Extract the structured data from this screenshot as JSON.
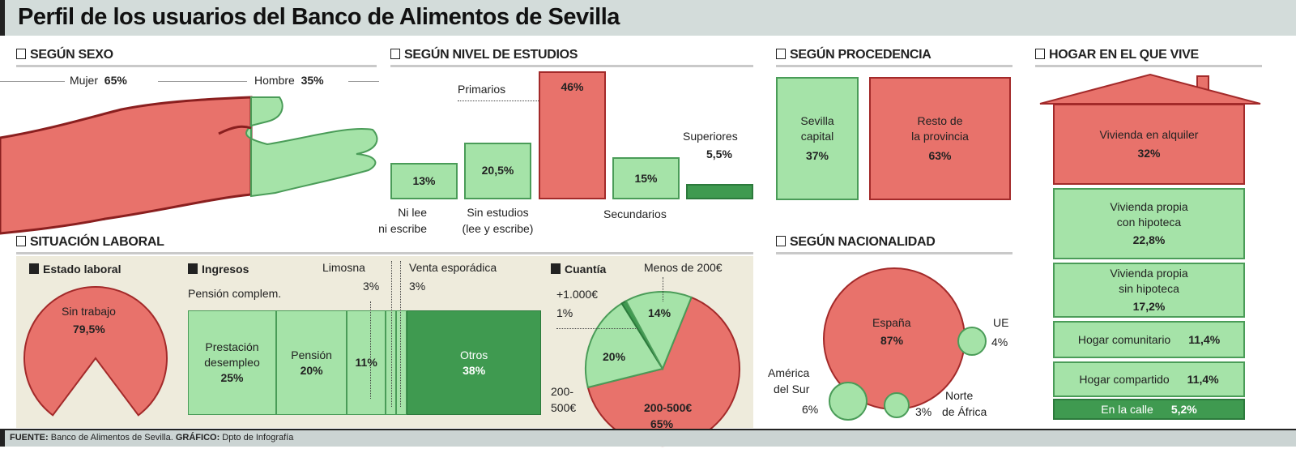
{
  "title": "Perfil de los usuarios del Banco de Alimentos de Sevilla",
  "colors": {
    "red": "#e8726b",
    "light_green": "#a5e3a8",
    "dark_green": "#3f9a50",
    "panel": "#eeebdc"
  },
  "sections": {
    "sexo": "SEGÚN SEXO",
    "estudios": "SEGÚN NIVEL DE ESTUDIOS",
    "procedencia": "SEGÚN PROCEDENCIA",
    "hogar": "HOGAR EN EL QUE VIVE",
    "laboral": "SITUACIÓN LABORAL",
    "nacionalidad": "SEGÚN NACIONALIDAD"
  },
  "sexo": {
    "mujer": {
      "label": "Mujer",
      "value": "65%"
    },
    "hombre": {
      "label": "Hombre",
      "value": "35%"
    }
  },
  "laboral_sub": {
    "estado": "Estado laboral",
    "ingresos": "Ingresos",
    "cuantia": "Cuantía"
  },
  "footer": {
    "fuente_label": "FUENTE:",
    "fuente": "Banco de Alimentos de Sevilla.",
    "grafico_label": "GRÁFICO:",
    "grafico": "Dpto de Infografía"
  },
  "chart_data": [
    {
      "type": "bar",
      "id": "estudios",
      "categories": [
        "Ni lee ni escribe",
        "Sin estudios (lee y escribe)",
        "Primarios",
        "Secundarios",
        "Superiores"
      ],
      "values": [
        13,
        20.5,
        46,
        15,
        5.5
      ],
      "labels": [
        "13%",
        "20,5%",
        "46%",
        "15%",
        "5,5%"
      ],
      "cat_lines": [
        [
          "Ni lee",
          "ni escribe"
        ],
        [
          "Sin estudios",
          "(lee y escribe)"
        ],
        [
          "Primarios"
        ],
        [
          "Secundarios"
        ],
        [
          "Superiores"
        ]
      ]
    },
    {
      "type": "bar",
      "id": "procedencia",
      "categories": [
        "Sevilla capital",
        "Resto de la provincia"
      ],
      "values": [
        37,
        63
      ],
      "labels": [
        "37%",
        "63%"
      ],
      "cat_lines": [
        [
          "Sevilla",
          "capital"
        ],
        [
          "Resto de",
          "la provincia"
        ]
      ]
    },
    {
      "type": "bar",
      "id": "hogar",
      "categories": [
        "Vivienda en alquiler",
        "Vivienda propia con hipoteca",
        "Vivienda propia sin hipoteca",
        "Hogar comunitario",
        "Hogar compartido",
        "En la calle"
      ],
      "values": [
        32,
        22.8,
        17.2,
        11.4,
        11.4,
        5.2
      ],
      "labels": [
        "32%",
        "22,8%",
        "17,2%",
        "11,4%",
        "11,4%",
        "5,2%"
      ],
      "cat_lines": [
        [
          "Vivienda en alquiler"
        ],
        [
          "Vivienda propia",
          "con hipoteca"
        ],
        [
          "Vivienda propia",
          "sin hipoteca"
        ],
        [
          "Hogar comunitario"
        ],
        [
          "Hogar compartido"
        ],
        [
          "En la calle"
        ]
      ]
    },
    {
      "type": "pie",
      "id": "estado_laboral",
      "categories": [
        "Sin trabajo",
        ""
      ],
      "values": [
        79.5,
        20.5
      ],
      "labels": [
        "79,5%",
        ""
      ],
      "cat_lines": [
        [
          "Sin trabajo"
        ],
        []
      ]
    },
    {
      "type": "bar",
      "id": "ingresos",
      "categories": [
        "Prestación desempleo",
        "Pensión",
        "Pensión complem.",
        "Limosna",
        "Venta esporádica",
        "Otros"
      ],
      "values": [
        25,
        20,
        11,
        3,
        3,
        38
      ],
      "labels": [
        "25%",
        "20%",
        "11%",
        "3%",
        "3%",
        "38%"
      ],
      "cat_lines": [
        [
          "Prestación",
          "desempleo"
        ],
        [
          "Pensión"
        ],
        [
          "Pensión complem."
        ],
        [
          "Limosna"
        ],
        [
          "Venta esporádica"
        ],
        [
          "Otros"
        ]
      ]
    },
    {
      "type": "pie",
      "id": "cuantia",
      "categories": [
        "200-500€",
        "Menos de 200€",
        "+1.000€",
        "200-500€"
      ],
      "values": [
        65,
        14,
        1,
        20
      ],
      "labels": [
        "65%",
        "14%",
        "1%",
        "20%"
      ],
      "cat_lines": [
        [
          "200-500€"
        ],
        [
          "Menos de 200€"
        ],
        [
          "+1.000€"
        ],
        [
          "200-",
          "500€"
        ]
      ]
    },
    {
      "type": "bubble",
      "id": "nacionalidad",
      "categories": [
        "España",
        "UE",
        "Norte de África",
        "América del Sur"
      ],
      "values": [
        87,
        4,
        3,
        6
      ],
      "labels": [
        "87%",
        "4%",
        "3%",
        "6%"
      ],
      "cat_lines": [
        [
          "España"
        ],
        [
          "UE"
        ],
        [
          "Norte",
          "de África"
        ],
        [
          "América",
          "del Sur"
        ]
      ]
    }
  ]
}
